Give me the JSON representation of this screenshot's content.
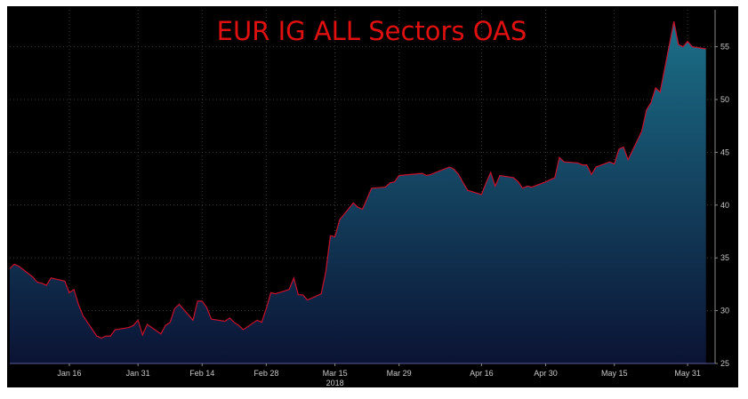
{
  "chart_data": {
    "type": "area",
    "title": "EUR IG ALL Sectors OAS",
    "xlabel": "",
    "ylabel": "",
    "year_label": "2018",
    "ylim": [
      25,
      58.5
    ],
    "xlim": [
      "2018-01-03",
      "2018-06-06"
    ],
    "yticks": [
      25,
      30,
      35,
      40,
      45,
      50,
      55
    ],
    "xticks": [
      {
        "date": "2018-01-16",
        "label": "Jan 16"
      },
      {
        "date": "2018-01-31",
        "label": "Jan 31"
      },
      {
        "date": "2018-02-14",
        "label": "Feb 14"
      },
      {
        "date": "2018-02-28",
        "label": "Feb 28"
      },
      {
        "date": "2018-03-15",
        "label": "Mar 15"
      },
      {
        "date": "2018-03-29",
        "label": "Mar 29"
      },
      {
        "date": "2018-04-16",
        "label": "Apr 16"
      },
      {
        "date": "2018-04-30",
        "label": "Apr 30"
      },
      {
        "date": "2018-05-15",
        "label": "May 15"
      },
      {
        "date": "2018-05-31",
        "label": "May 31"
      }
    ],
    "grid": true,
    "legend": "none",
    "colors": {
      "line": "#c8102e",
      "fill_top": "#1b6f88",
      "fill_bottom": "#0b1334",
      "title": "#e01010",
      "background": "#000000"
    },
    "series": [
      {
        "x": [
          "2018-01-03",
          "2018-01-04",
          "2018-01-05",
          "2018-01-08",
          "2018-01-09",
          "2018-01-10",
          "2018-01-11",
          "2018-01-12",
          "2018-01-15",
          "2018-01-16",
          "2018-01-17",
          "2018-01-18",
          "2018-01-19",
          "2018-01-22",
          "2018-01-23",
          "2018-01-24",
          "2018-01-25",
          "2018-01-26",
          "2018-01-29",
          "2018-01-30",
          "2018-01-31",
          "2018-02-01",
          "2018-02-02",
          "2018-02-05",
          "2018-02-06",
          "2018-02-07",
          "2018-02-08",
          "2018-02-09",
          "2018-02-12",
          "2018-02-13",
          "2018-02-14",
          "2018-02-15",
          "2018-02-16",
          "2018-02-19",
          "2018-02-20",
          "2018-02-21",
          "2018-02-22",
          "2018-02-23",
          "2018-02-26",
          "2018-02-27",
          "2018-02-28",
          "2018-03-01",
          "2018-03-02",
          "2018-03-05",
          "2018-03-06",
          "2018-03-07",
          "2018-03-08",
          "2018-03-09",
          "2018-03-12",
          "2018-03-13",
          "2018-03-14",
          "2018-03-15",
          "2018-03-16",
          "2018-03-19",
          "2018-03-20",
          "2018-03-21",
          "2018-03-22",
          "2018-03-23",
          "2018-03-26",
          "2018-03-27",
          "2018-03-28",
          "2018-03-29",
          "2018-04-03",
          "2018-04-04",
          "2018-04-05",
          "2018-04-06",
          "2018-04-09",
          "2018-04-10",
          "2018-04-11",
          "2018-04-12",
          "2018-04-13",
          "2018-04-16",
          "2018-04-17",
          "2018-04-18",
          "2018-04-19",
          "2018-04-20",
          "2018-04-23",
          "2018-04-24",
          "2018-04-25",
          "2018-04-26",
          "2018-04-27",
          "2018-04-30",
          "2018-05-02",
          "2018-05-03",
          "2018-05-04",
          "2018-05-07",
          "2018-05-08",
          "2018-05-09",
          "2018-05-10",
          "2018-05-11",
          "2018-05-14",
          "2018-05-15",
          "2018-05-16",
          "2018-05-17",
          "2018-05-18",
          "2018-05-21",
          "2018-05-22",
          "2018-05-23",
          "2018-05-24",
          "2018-05-25",
          "2018-05-28",
          "2018-05-29",
          "2018-05-30",
          "2018-05-31",
          "2018-06-01",
          "2018-06-04"
        ],
        "values": [
          34.0,
          34.4,
          34.2,
          33.2,
          32.7,
          32.6,
          32.4,
          33.1,
          32.8,
          31.7,
          32.0,
          30.6,
          29.5,
          27.6,
          27.4,
          27.6,
          27.6,
          28.2,
          28.4,
          28.6,
          29.1,
          27.7,
          28.7,
          27.8,
          28.6,
          28.9,
          30.2,
          30.6,
          29.1,
          30.9,
          30.9,
          30.3,
          29.2,
          29.0,
          29.3,
          28.9,
          28.6,
          28.2,
          29.1,
          28.9,
          30.2,
          31.7,
          31.6,
          32.0,
          33.1,
          31.5,
          31.5,
          31.0,
          31.6,
          33.7,
          37.1,
          37.0,
          38.6,
          40.2,
          39.8,
          39.6,
          40.6,
          41.6,
          41.7,
          42.1,
          42.2,
          42.8,
          43.0,
          42.8,
          42.9,
          43.1,
          43.6,
          43.4,
          42.9,
          42.1,
          41.4,
          41.0,
          42.1,
          43.1,
          41.8,
          42.8,
          42.6,
          42.2,
          41.6,
          41.8,
          41.7,
          42.2,
          42.6,
          44.5,
          44.1,
          44.0,
          43.8,
          43.8,
          42.9,
          43.6,
          44.1,
          43.9,
          45.3,
          45.5,
          44.3,
          47.0,
          49.0,
          49.7,
          51.1,
          50.7,
          57.4,
          55.2,
          55.0,
          55.5,
          55.0,
          54.8
        ]
      }
    ]
  }
}
